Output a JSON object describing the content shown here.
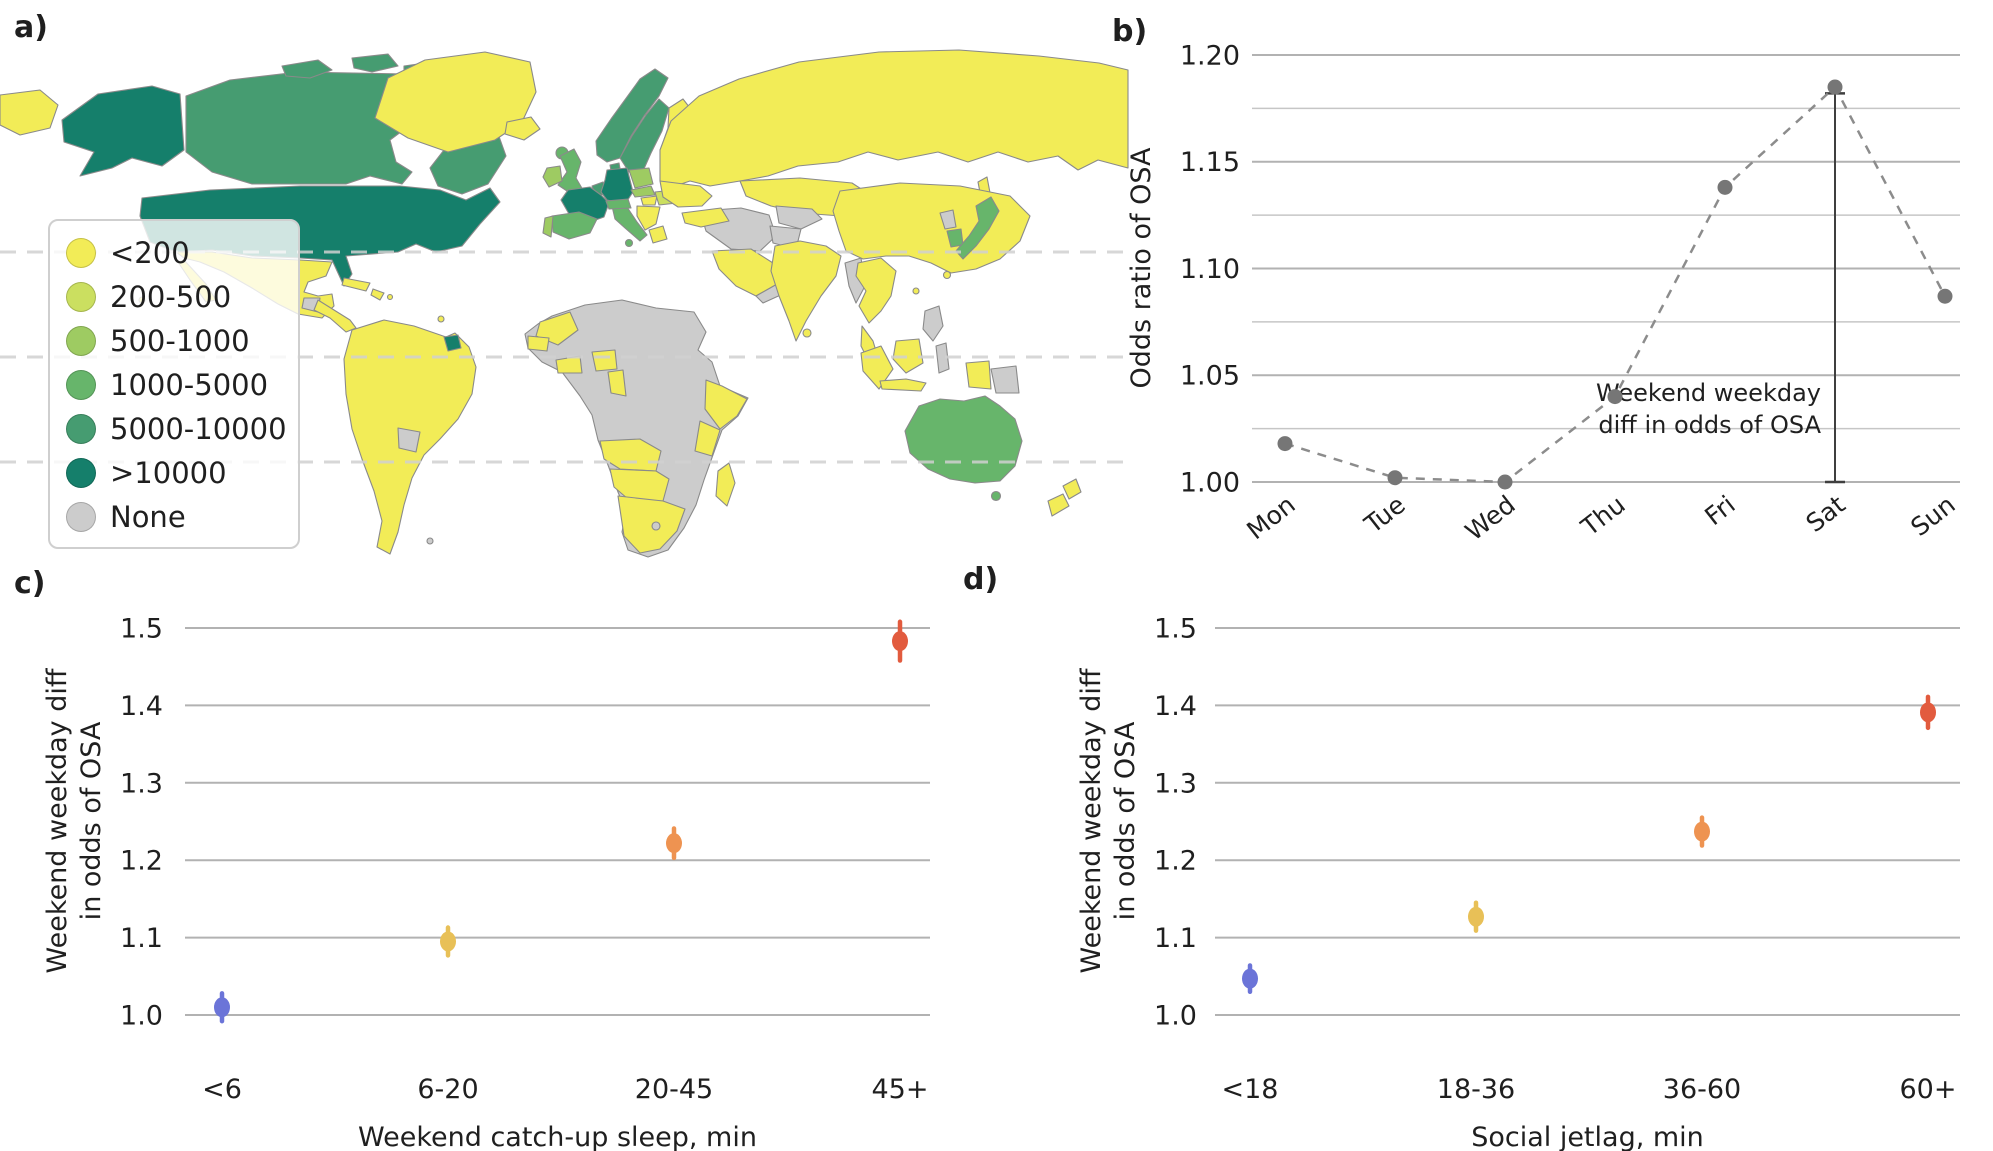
{
  "panels": {
    "a": "a)",
    "b": "b)",
    "c": "c)",
    "d": "d)"
  },
  "ui_colors": {
    "grid": "#b2b2b2",
    "grid_minor": "#c6c6c6",
    "text": "#1f1f1f",
    "line_gray": "#8c8c8c",
    "point_gray": "#767676",
    "annotation": "#3f3f3f",
    "map_border": "#8a8a8a",
    "latitude_line": "#d0d0d0"
  },
  "chart_data": [
    {
      "id": "panel-a",
      "type": "choropleth",
      "legend": {
        "items": [
          {
            "key": "lt200",
            "label": "<200",
            "color": "#f2ec57"
          },
          {
            "key": "c200_500",
            "label": "200-500",
            "color": "#cbdf60"
          },
          {
            "key": "c500_1000",
            "label": "500-1000",
            "color": "#9ecb62"
          },
          {
            "key": "c1000_5000",
            "label": "1000-5000",
            "color": "#67b56b"
          },
          {
            "key": "c5000_10000",
            "label": "5000-10000",
            "color": "#469c71"
          },
          {
            "key": "gt10000",
            "label": ">10000",
            "color": "#157f6b"
          },
          {
            "key": "none",
            "label": "None",
            "color": "#cccccc"
          }
        ]
      },
      "regions": {
        "chukotka": "lt200",
        "alaska": "gt10000",
        "canada": "c5000_10000",
        "arctic-island-1": "c5000_10000",
        "arctic-island-2": "c5000_10000",
        "arctic-island-3": "c5000_10000",
        "arctic-island-4": "c5000_10000",
        "greenland": "lt200",
        "usa": "gt10000",
        "hawaii": "lt200",
        "mexico": "lt200",
        "baja": "lt200",
        "guatemala": "none",
        "central-america": "lt200",
        "cuba": "lt200",
        "hispaniola": "lt200",
        "puerto-rico": "lt200",
        "trinidad": "lt200",
        "south-america": "lt200",
        "french-guiana": "gt10000",
        "paraguay": "none",
        "falklands": "none",
        "iceland": "lt200",
        "faroe": "c1000_5000",
        "norway": "c5000_10000",
        "sweden": "c5000_10000",
        "finland": "lt200",
        "uk": "c1000_5000",
        "ireland": "c500_1000",
        "denmark": "c5000_10000",
        "benelux": "c5000_10000",
        "germany": "gt10000",
        "france": "gt10000",
        "spain": "c1000_5000",
        "portugal": "c500_1000",
        "italy": "c1000_5000",
        "sicily": "c1000_5000",
        "alpine": "c1000_5000",
        "poland": "c500_1000",
        "czech-slovakia": "c500_1000",
        "hungary": "lt200",
        "romania": "c200_500",
        "balkans": "lt200",
        "greece": "lt200",
        "russia": "lt200",
        "russia-west": "lt200",
        "sakhalin": "lt200",
        "central-asia": "lt200",
        "gray-stans": "none",
        "iran-iraq": "none",
        "afghanistan": "none",
        "turkey": "lt200",
        "saudi": "lt200",
        "oman-yemen": "none",
        "india": "lt200",
        "sri-lanka": "lt200",
        "myanmar": "none",
        "indochina": "lt200",
        "malay": "lt200",
        "china": "lt200",
        "north-korea": "none",
        "south-korea": "c1000_5000",
        "japan": "c1000_5000",
        "taiwan": "lt200",
        "hainan": "lt200",
        "philippines": "none",
        "sumatra": "lt200",
        "borneo": "lt200",
        "java": "lt200",
        "sulawesi": "none",
        "west-papua": "lt200",
        "png": "none",
        "australia": "c1000_5000",
        "tasmania": "c1000_5000",
        "nz-north": "lt200",
        "nz-south": "lt200",
        "africa": "none",
        "morocco": "lt200",
        "senegal": "lt200",
        "ghana-ivory": "lt200",
        "nigeria": "lt200",
        "cameroon-gabon": "lt200",
        "ethiopia-somalia": "lt200",
        "kenya-tanzania": "lt200",
        "angola-zambia": "lt200",
        "namibia-botswana": "lt200",
        "south-africa": "lt200",
        "lesotho": "none",
        "madagascar": "lt200"
      }
    },
    {
      "id": "panel-b",
      "type": "line",
      "ylabel": "Odds ratio of OSA",
      "categories": [
        "Mon",
        "Tue",
        "Wed",
        "Thu",
        "Fri",
        "Sat",
        "Sun"
      ],
      "values": [
        1.018,
        1.002,
        1.0,
        1.04,
        1.138,
        1.185,
        1.087
      ],
      "ylim": [
        1.0,
        1.2
      ],
      "yticks": [
        1.0,
        1.05,
        1.1,
        1.15,
        1.2
      ],
      "ytick_labels": [
        "1.00",
        "1.05",
        "1.10",
        "1.15",
        "1.20"
      ],
      "minor_grid_values": [
        1.025,
        1.075,
        1.125,
        1.175
      ],
      "annotation": {
        "lines": [
          "Weekend weekday",
          "diff in odds of OSA"
        ],
        "category": "Sat",
        "from": 1.182,
        "to": 1.0
      }
    },
    {
      "id": "panel-c",
      "type": "scatter",
      "xlabel": "Weekend catch-up sleep, min",
      "ylabel_lines": [
        "Weekend weekday diff",
        "in odds of OSA"
      ],
      "categories": [
        "<6",
        "6-20",
        "20-45",
        "45+"
      ],
      "values": [
        1.01,
        1.095,
        1.222,
        1.483
      ],
      "ci_low": [
        0.992,
        1.077,
        1.203,
        1.458
      ],
      "ci_high": [
        1.028,
        1.113,
        1.241,
        1.508
      ],
      "point_colors": [
        "#6b74d8",
        "#e8c057",
        "#ee9351",
        "#e25b3e"
      ],
      "ylim": [
        1.0,
        1.5
      ],
      "yticks": [
        1.0,
        1.1,
        1.2,
        1.3,
        1.4,
        1.5
      ],
      "ytick_labels": [
        "1.0",
        "1.1",
        "1.2",
        "1.3",
        "1.4",
        "1.5"
      ]
    },
    {
      "id": "panel-d",
      "type": "scatter",
      "xlabel": "Social jetlag, min",
      "ylabel_lines": [
        "Weekend weekday diff",
        "in odds of OSA"
      ],
      "categories": [
        "<18",
        "18-36",
        "36-60",
        "60+"
      ],
      "values": [
        1.047,
        1.127,
        1.237,
        1.391
      ],
      "ci_low": [
        1.03,
        1.109,
        1.219,
        1.371
      ],
      "ci_high": [
        1.064,
        1.145,
        1.255,
        1.411
      ],
      "point_colors": [
        "#6b74d8",
        "#e8c057",
        "#ee9351",
        "#e25b3e"
      ],
      "ylim": [
        1.0,
        1.5
      ],
      "yticks": [
        1.0,
        1.1,
        1.2,
        1.3,
        1.4,
        1.5
      ],
      "ytick_labels": [
        "1.0",
        "1.1",
        "1.2",
        "1.3",
        "1.4",
        "1.5"
      ]
    }
  ]
}
